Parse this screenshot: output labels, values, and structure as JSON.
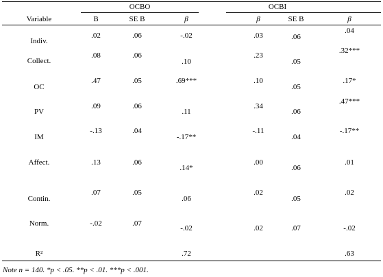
{
  "table": {
    "groups": [
      "OCBO",
      "OCBI"
    ],
    "header": [
      "Variable",
      "B",
      "SE B",
      "β",
      "β",
      "SE B",
      "β"
    ],
    "rows": [
      {
        "label": "Indiv.",
        "cells": [
          ".02",
          ".06",
          "-.02",
          ".03",
          ".06",
          ".04"
        ]
      },
      {
        "label": "Collect.",
        "cells": [
          ".08",
          ".06",
          ".10",
          ".23",
          ".05",
          ".32***"
        ]
      },
      {
        "label": "OC",
        "cells": [
          ".47",
          ".05",
          ".69***",
          ".10",
          ".05",
          ".17*"
        ]
      },
      {
        "label": "PV",
        "cells": [
          ".09",
          ".06",
          ".11",
          ".34",
          ".06",
          ".47***"
        ]
      },
      {
        "label": "IM",
        "cells": [
          "-.13",
          ".04",
          "-.17**",
          "-.11",
          ".04",
          "-.17**"
        ]
      },
      {
        "label": "Affect.",
        "cells": [
          ".13",
          ".06",
          ".14*",
          ".00",
          ".06",
          ".01"
        ]
      },
      {
        "label": "Contin.",
        "cells": [
          ".07",
          ".05",
          ".06",
          ".02",
          ".05",
          ".02"
        ]
      },
      {
        "label": "Norm.",
        "cells": [
          "-.02",
          ".07",
          "-.02",
          ".02",
          ".07",
          "-.02"
        ]
      },
      {
        "label": "R²",
        "cells": [
          null,
          null,
          ".72",
          null,
          null,
          ".63"
        ]
      }
    ],
    "note": "Note n = 140. *p < .05. **p < .01. ***p < .001."
  }
}
